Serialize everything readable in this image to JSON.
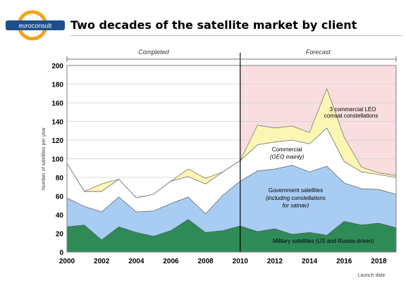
{
  "header": {
    "title": "Two decades of the satellite market by client",
    "logo_text": "euroconsult",
    "logo_colors": {
      "ring": "#f4a21d",
      "band": "#1f4e8c"
    }
  },
  "chart_data": {
    "type": "area",
    "stacked": true,
    "title": "Two decades of the satellite market by client",
    "xlabel": "Launch date",
    "ylabel": "Number of satellites per year",
    "ylim": [
      0,
      200
    ],
    "yticks": [
      0,
      20,
      40,
      60,
      80,
      100,
      120,
      140,
      160,
      180,
      200
    ],
    "xlim": [
      2000,
      2019
    ],
    "xticks": [
      2000,
      2002,
      2004,
      2006,
      2008,
      2010,
      2012,
      2014,
      2016,
      2018
    ],
    "grid": true,
    "regions": [
      {
        "label": "Completed",
        "from": 2000,
        "to": 2010
      },
      {
        "label": "Forecast",
        "from": 2010,
        "to": 2019,
        "fill": "#f8dede"
      }
    ],
    "x": [
      2000,
      2001,
      2002,
      2003,
      2004,
      2005,
      2006,
      2007,
      2008,
      2009,
      2010,
      2011,
      2012,
      2013,
      2014,
      2015,
      2016,
      2017,
      2018,
      2019
    ],
    "series": [
      {
        "name": "Military satellites (US and Russia driven)",
        "color": "#2e8b57",
        "values": [
          27,
          29,
          13,
          27,
          21,
          17,
          23,
          35,
          21,
          23,
          28,
          22,
          25,
          19,
          21,
          18,
          33,
          29,
          31,
          26
        ]
      },
      {
        "name": "Government satellites (including constellations for satnav)",
        "color": "#a9cdf2",
        "values": [
          31,
          20,
          30,
          32,
          22,
          27,
          29,
          24,
          20,
          38,
          48,
          65,
          64,
          74,
          65,
          74,
          41,
          39,
          36,
          36
        ]
      },
      {
        "name": "Commercial (GEO mainly)",
        "color": "#ffffff",
        "values": [
          37,
          16,
          22,
          19,
          15,
          18,
          24,
          22,
          32,
          25,
          22,
          28,
          29,
          27,
          30,
          41,
          23,
          18,
          16,
          18
        ]
      },
      {
        "name": "3 commercial LEO comsat constellations",
        "color": "#fbf6b4",
        "values": [
          0,
          0,
          8,
          0,
          0,
          0,
          0,
          8,
          6,
          0,
          0,
          21,
          15,
          15,
          12,
          42,
          26,
          5,
          2,
          2
        ]
      }
    ],
    "annotations": [
      {
        "text": "3 commercial LEO",
        "x": 2016.5,
        "y": 151
      },
      {
        "text": "comsat constellations",
        "x": 2016.4,
        "y": 144
      },
      {
        "text": "Commercial",
        "x": 2012.7,
        "y": 108
      },
      {
        "text": "(GEO mainly)",
        "x": 2012.7,
        "y": 100
      },
      {
        "text": "Government satellites",
        "x": 2013.2,
        "y": 64
      },
      {
        "text": "(including constellations",
        "x": 2013.2,
        "y": 56
      },
      {
        "text": "for satnav)",
        "x": 2013.2,
        "y": 48
      },
      {
        "text": "Military satellites (US and Russia driven)",
        "x": 2014.8,
        "y": 10
      }
    ]
  }
}
